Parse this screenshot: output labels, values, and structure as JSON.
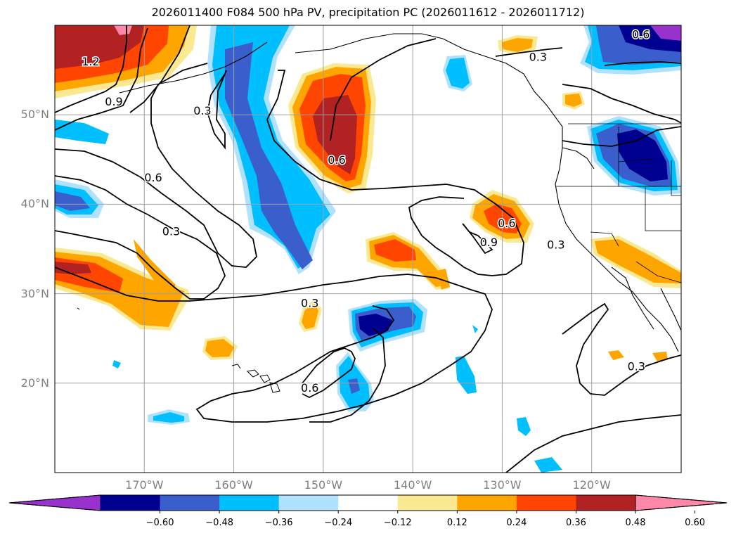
{
  "title": "2026011400 F084 500 hPa PV, precipitation PC (2026011612 - 2026011712)",
  "map": {
    "lon_range": [
      -180,
      -110
    ],
    "lat_range": [
      10,
      60
    ],
    "lat_ticks": [
      {
        "value": 50,
        "label": "50°N"
      },
      {
        "value": 40,
        "label": "40°N"
      },
      {
        "value": 30,
        "label": "30°N"
      },
      {
        "value": 20,
        "label": "20°N"
      }
    ],
    "lon_ticks": [
      {
        "value": -170,
        "label": "170°W"
      },
      {
        "value": -160,
        "label": "160°W"
      },
      {
        "value": -150,
        "label": "150°W"
      },
      {
        "value": -140,
        "label": "140°W"
      },
      {
        "value": -130,
        "label": "130°W"
      },
      {
        "value": -120,
        "label": "120°W"
      }
    ],
    "grid": true,
    "contour_labels": [
      {
        "text": "1.2",
        "lon": -176.0,
        "lat": 56.0
      },
      {
        "text": "0.9",
        "lon": -173.4,
        "lat": 51.5
      },
      {
        "text": "0.3",
        "lon": -163.5,
        "lat": 50.5
      },
      {
        "text": "0.6",
        "lon": -169.0,
        "lat": 43.0
      },
      {
        "text": "0.3",
        "lon": -167.0,
        "lat": 37.0
      },
      {
        "text": "0.6",
        "lon": -148.5,
        "lat": 45.0
      },
      {
        "text": "0.6",
        "lon": -129.5,
        "lat": 37.9
      },
      {
        "text": "0.9",
        "lon": -131.5,
        "lat": 35.8
      },
      {
        "text": "0.3",
        "lon": -124.0,
        "lat": 35.5
      },
      {
        "text": "0.3",
        "lon": -126.0,
        "lat": 56.5
      },
      {
        "text": "0.6",
        "lon": -114.5,
        "lat": 59.0
      },
      {
        "text": "0.3",
        "lon": -151.5,
        "lat": 29.0
      },
      {
        "text": "0.6",
        "lon": -151.5,
        "lat": 19.5
      },
      {
        "text": "0.3",
        "lon": -115.0,
        "lat": 21.9
      }
    ]
  },
  "colorbar": {
    "colors": [
      "#9932cc",
      "#000090",
      "#3a5fcd",
      "#00bfff",
      "#b0e2ff",
      "#ffffff",
      "#fbe992",
      "#ffa500",
      "#ff4500",
      "#b22222",
      "#ff88aa"
    ],
    "tick_labels": [
      "−0.60",
      "−0.48",
      "−0.36",
      "−0.24",
      "−0.12",
      "0.12",
      "0.24",
      "0.36",
      "0.48",
      "0.60"
    ]
  }
}
